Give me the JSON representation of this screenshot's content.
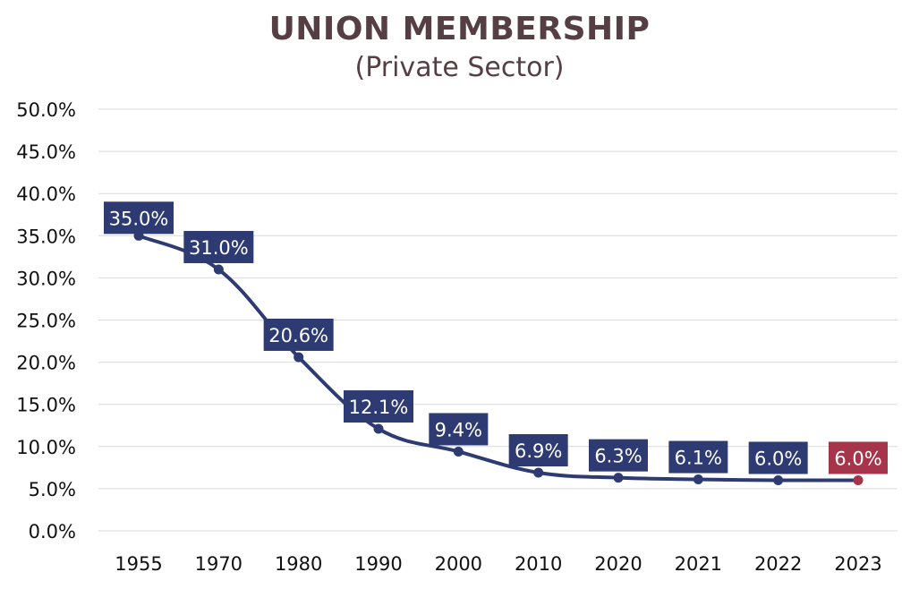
{
  "chart_data": {
    "type": "line",
    "title": "UNION MEMBERSHIP",
    "subtitle": "(Private Sector)",
    "categories": [
      "1955",
      "1970",
      "1980",
      "1990",
      "2000",
      "2010",
      "2020",
      "2021",
      "2022",
      "2023"
    ],
    "series": [
      {
        "values": [
          35.0,
          31.0,
          20.6,
          12.1,
          9.4,
          6.9,
          6.3,
          6.1,
          6.0,
          6.0
        ]
      }
    ],
    "data_labels": [
      "35.0%",
      "31.0%",
      "20.6%",
      "12.1%",
      "9.4%",
      "6.9%",
      "6.3%",
      "6.1%",
      "6.0%",
      "6.0%"
    ],
    "y_ticks": [
      "0.0%",
      "5.0%",
      "10.0%",
      "15.0%",
      "20.0%",
      "25.0%",
      "30.0%",
      "35.0%",
      "40.0%",
      "45.0%",
      "50.0%"
    ],
    "ylim": [
      0,
      50
    ],
    "grid": true,
    "colors": {
      "line": "#2e3b72",
      "highlight": "#a6344a",
      "title": "#553f45",
      "grid": "#d9d9d9"
    },
    "highlight_index": 9
  }
}
